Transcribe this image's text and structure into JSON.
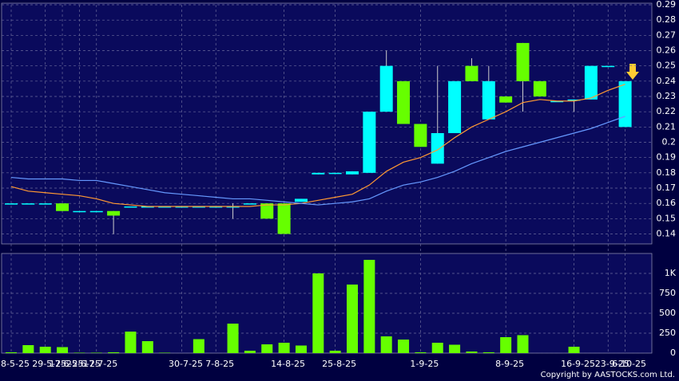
{
  "chart_data": {
    "type": "candlestick",
    "categories": [
      "8-5-25",
      null,
      "29-5-25",
      "17-6-25",
      "25-6-25",
      "17-7-25",
      null,
      null,
      null,
      null,
      "30-7-25",
      null,
      "7-8-25",
      null,
      null,
      null,
      "14-8-25",
      null,
      null,
      "25-8-25",
      null,
      null,
      null,
      null,
      "1-9-25",
      null,
      null,
      null,
      null,
      "8-9-25",
      null,
      null,
      null,
      "16-9-25",
      null,
      "23-9-25",
      "6-10-25"
    ],
    "open": [
      0.16,
      0.16,
      0.16,
      0.16,
      0.155,
      0.155,
      0.155,
      0.158,
      0.158,
      0.158,
      0.158,
      0.158,
      0.158,
      0.158,
      0.16,
      0.16,
      0.16,
      0.161,
      0.179,
      0.18,
      0.179,
      0.18,
      0.22,
      0.24,
      0.212,
      0.186,
      0.206,
      0.25,
      0.215,
      0.23,
      0.265,
      0.24,
      0.227,
      0.228,
      0.228,
      0.25,
      0.21
    ],
    "high": [
      0.16,
      0.16,
      0.16,
      0.16,
      0.155,
      0.155,
      0.155,
      0.158,
      0.158,
      0.158,
      0.158,
      0.158,
      0.158,
      0.16,
      0.16,
      0.16,
      0.16,
      0.163,
      0.18,
      0.18,
      0.181,
      0.22,
      0.26,
      0.24,
      0.212,
      0.25,
      0.24,
      0.255,
      0.25,
      0.23,
      0.265,
      0.24,
      0.227,
      0.228,
      0.25,
      0.25,
      0.24
    ],
    "low": [
      0.16,
      0.16,
      0.16,
      0.155,
      0.155,
      0.155,
      0.14,
      0.158,
      0.158,
      0.158,
      0.158,
      0.158,
      0.158,
      0.15,
      0.16,
      0.15,
      0.14,
      0.161,
      0.179,
      0.18,
      0.179,
      0.18,
      0.22,
      0.212,
      0.197,
      0.186,
      0.206,
      0.24,
      0.215,
      0.226,
      0.22,
      0.23,
      0.227,
      0.22,
      0.228,
      0.25,
      0.21
    ],
    "close": [
      0.16,
      0.16,
      0.16,
      0.155,
      0.155,
      0.155,
      0.152,
      0.158,
      0.158,
      0.158,
      0.158,
      0.158,
      0.158,
      0.158,
      0.16,
      0.15,
      0.14,
      0.163,
      0.18,
      0.18,
      0.181,
      0.22,
      0.25,
      0.212,
      0.197,
      0.206,
      0.24,
      0.24,
      0.24,
      0.226,
      0.24,
      0.23,
      0.227,
      0.228,
      0.25,
      0.25,
      0.24
    ],
    "up_color": "#00ffff",
    "down_color": "#66ff00",
    "series": [
      {
        "name": "MA short",
        "color": "#ff9933",
        "values": [
          0.171,
          0.168,
          0.167,
          0.166,
          0.165,
          0.163,
          0.16,
          0.159,
          0.158,
          0.158,
          0.158,
          0.158,
          0.158,
          0.158,
          0.158,
          0.159,
          0.159,
          0.16,
          0.162,
          0.164,
          0.166,
          0.172,
          0.181,
          0.187,
          0.19,
          0.195,
          0.203,
          0.21,
          0.215,
          0.22,
          0.226,
          0.228,
          0.227,
          0.227,
          0.229,
          0.234,
          0.238
        ]
      },
      {
        "name": "MA long",
        "color": "#6699ff",
        "values": [
          0.177,
          0.176,
          0.176,
          0.176,
          0.175,
          0.175,
          0.173,
          0.171,
          0.169,
          0.167,
          0.166,
          0.165,
          0.164,
          0.163,
          0.163,
          0.162,
          0.161,
          0.16,
          0.159,
          0.16,
          0.161,
          0.163,
          0.168,
          0.172,
          0.174,
          0.177,
          0.181,
          0.186,
          0.19,
          0.194,
          0.197,
          0.2,
          0.203,
          0.206,
          0.209,
          0.213,
          0.217
        ]
      }
    ],
    "ylim": [
      0.134,
      0.29
    ],
    "yticks": [
      0.14,
      0.15,
      0.16,
      0.17,
      0.18,
      0.19,
      0.2,
      0.21,
      0.22,
      0.23,
      0.24,
      0.25,
      0.26,
      0.27,
      0.28,
      0.29
    ],
    "volume": {
      "color": "#66ff00",
      "values": [
        10,
        100,
        80,
        75,
        5,
        5,
        10,
        270,
        150,
        5,
        0,
        175,
        0,
        370,
        30,
        110,
        130,
        95,
        1000,
        30,
        860,
        1170,
        210,
        170,
        10,
        130,
        105,
        20,
        10,
        200,
        225,
        0,
        0,
        80,
        0,
        0,
        0
      ],
      "ylim": [
        0,
        1250
      ],
      "yticks": [
        0,
        250,
        500,
        750,
        {
          "value": 1000,
          "label": "1K"
        }
      ]
    },
    "grid": true,
    "copyright": "Copyright by AASTOCKS.com Ltd."
  }
}
